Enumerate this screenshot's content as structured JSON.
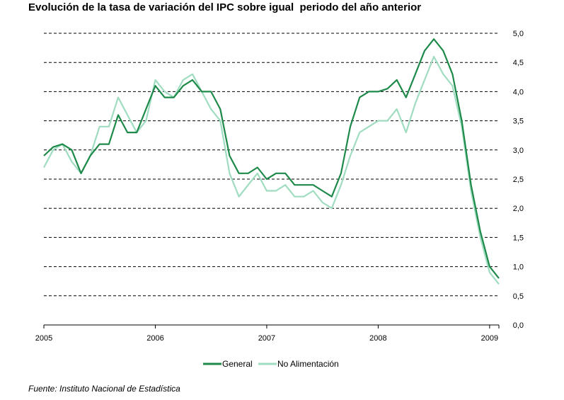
{
  "title": "Evolución de la tasa de variación del IPC sobre igual  periodo del año anterior",
  "source": "Fuente: Instituto Nacional de Estadística",
  "colors": {
    "general": "#1e8a4a",
    "no_alimentacion": "#9fdcc0",
    "grid": "#000000"
  },
  "chart_data": {
    "type": "line",
    "title": "Evolución de la tasa de variación del IPC sobre igual  periodo del año anterior",
    "xlabel": "",
    "ylabel": "",
    "x_tick_labels": [
      "2005",
      "2006",
      "2007",
      "2008",
      "2009"
    ],
    "y_tick_labels": [
      "0,0",
      "0,5",
      "1,0",
      "1,5",
      "2,0",
      "2,5",
      "3,0",
      "3,5",
      "4,0",
      "4,5",
      "5,0"
    ],
    "ylim": [
      0,
      5
    ],
    "x_range": [
      "2005-01",
      "2009-02"
    ],
    "grid": "horizontal dashed",
    "legend_position": "bottom",
    "x": [
      "2005-01",
      "2005-02",
      "2005-03",
      "2005-04",
      "2005-05",
      "2005-06",
      "2005-07",
      "2005-08",
      "2005-09",
      "2005-10",
      "2005-11",
      "2005-12",
      "2006-01",
      "2006-02",
      "2006-03",
      "2006-04",
      "2006-05",
      "2006-06",
      "2006-07",
      "2006-08",
      "2006-09",
      "2006-10",
      "2006-11",
      "2006-12",
      "2007-01",
      "2007-02",
      "2007-03",
      "2007-04",
      "2007-05",
      "2007-06",
      "2007-07",
      "2007-08",
      "2007-09",
      "2007-10",
      "2007-11",
      "2007-12",
      "2008-01",
      "2008-02",
      "2008-03",
      "2008-04",
      "2008-05",
      "2008-06",
      "2008-07",
      "2008-08",
      "2008-09",
      "2008-10",
      "2008-11",
      "2008-12",
      "2009-01",
      "2009-02"
    ],
    "series": [
      {
        "name": "General",
        "values": [
          2.9,
          3.05,
          3.1,
          3.0,
          2.6,
          2.9,
          3.1,
          3.1,
          3.6,
          3.3,
          3.3,
          3.7,
          4.1,
          3.9,
          3.9,
          4.1,
          4.2,
          4.0,
          4.0,
          3.7,
          2.9,
          2.6,
          2.6,
          2.7,
          2.5,
          2.6,
          2.6,
          2.4,
          2.4,
          2.4,
          2.3,
          2.2,
          2.6,
          3.4,
          3.9,
          4.0,
          4.0,
          4.05,
          4.2,
          3.9,
          4.3,
          4.7,
          4.9,
          4.7,
          4.3,
          3.5,
          2.4,
          1.6,
          1.0,
          0.8
        ]
      },
      {
        "name": "No Alimentación",
        "values": [
          2.7,
          3.0,
          3.1,
          2.8,
          2.6,
          2.9,
          3.4,
          3.4,
          3.9,
          3.6,
          3.3,
          3.5,
          4.2,
          4.0,
          3.9,
          4.2,
          4.3,
          4.0,
          3.7,
          3.5,
          2.6,
          2.2,
          2.4,
          2.6,
          2.3,
          2.3,
          2.4,
          2.2,
          2.2,
          2.3,
          2.1,
          2.0,
          2.4,
          2.9,
          3.3,
          3.4,
          3.5,
          3.5,
          3.7,
          3.3,
          3.8,
          4.2,
          4.6,
          4.3,
          4.1,
          3.4,
          2.3,
          1.5,
          0.9,
          0.7
        ]
      }
    ]
  }
}
